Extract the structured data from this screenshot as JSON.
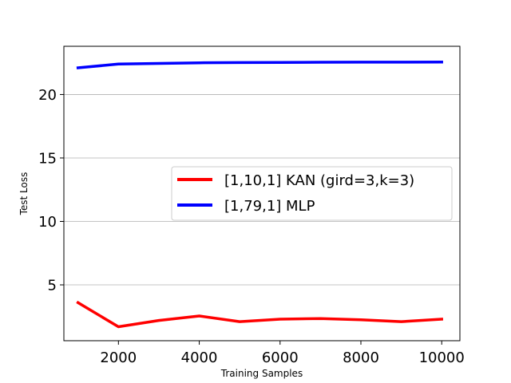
{
  "chart_data": {
    "type": "line",
    "xlabel": "Training Samples",
    "ylabel": "Test Loss",
    "xlim": [
      650,
      10450
    ],
    "ylim": [
      0.6,
      23.8
    ],
    "xticks": [
      2000,
      4000,
      6000,
      8000,
      10000
    ],
    "yticks": [
      5,
      10,
      15,
      20
    ],
    "grid": "horizontal",
    "legend_placement": "center-right",
    "x": [
      1000,
      2000,
      3000,
      4000,
      5000,
      6000,
      7000,
      8000,
      9000,
      10000
    ],
    "series": [
      {
        "name": "[1,10,1] KAN (gird=3,k=3)",
        "color": "#ff0000",
        "values": [
          3.6,
          1.7,
          2.2,
          2.55,
          2.1,
          2.3,
          2.35,
          2.25,
          2.1,
          2.3
        ]
      },
      {
        "name": "[1,79,1] MLP",
        "color": "#0000ff",
        "values": [
          22.1,
          22.4,
          22.45,
          22.5,
          22.52,
          22.53,
          22.54,
          22.55,
          22.55,
          22.56
        ]
      }
    ]
  }
}
